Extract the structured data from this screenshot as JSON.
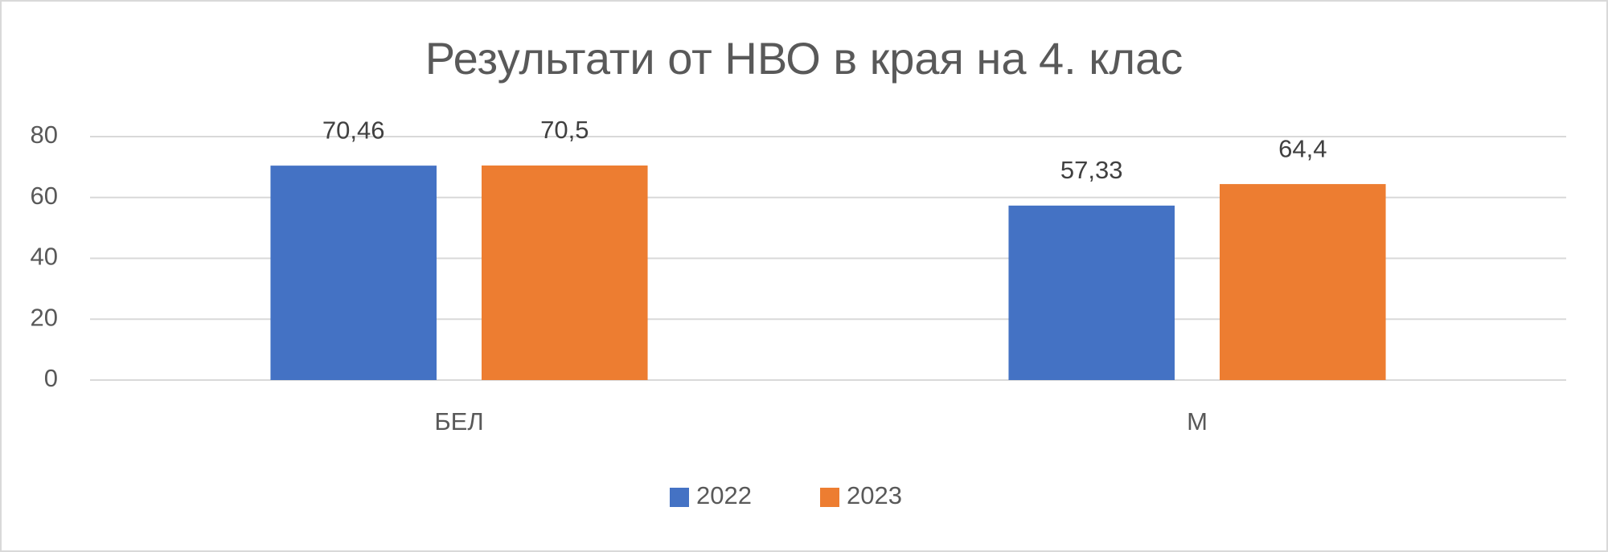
{
  "chart_data": {
    "type": "bar",
    "title": "Результати от НВО в края на 4. клас",
    "categories": [
      "БЕЛ",
      "М"
    ],
    "series": [
      {
        "name": "2022",
        "color": "#4472c4",
        "values": [
          70.46,
          57.33
        ],
        "value_labels": [
          "70,46",
          "57,33"
        ]
      },
      {
        "name": "2023",
        "color": "#ed7d31",
        "values": [
          70.5,
          64.4
        ],
        "value_labels": [
          "70,5",
          "64,4"
        ]
      }
    ],
    "ylim": [
      0,
      80
    ],
    "yticks": [
      0,
      20,
      40,
      60,
      80
    ],
    "grid": true,
    "legend": "bottom"
  }
}
